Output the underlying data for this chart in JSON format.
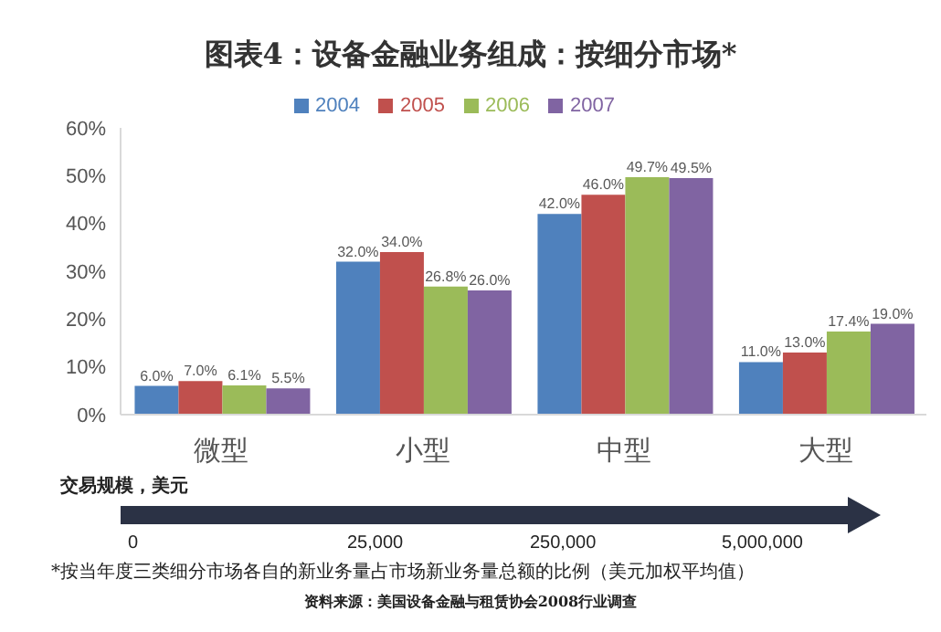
{
  "chart_data": {
    "type": "bar",
    "title": "图表4：设备金融业务组成：按细分市场*",
    "categories": [
      "微型",
      "小型",
      "中型",
      "大型"
    ],
    "series": [
      {
        "name": "2004",
        "color": "#4f81bd",
        "values": [
          6.0,
          32.0,
          42.0,
          11.0
        ],
        "value_labels": [
          "6.0%",
          "32.0%",
          "42.0%",
          "11.0%"
        ]
      },
      {
        "name": "2005",
        "color": "#c0504d",
        "values": [
          7.0,
          34.0,
          46.0,
          13.0
        ],
        "value_labels": [
          "7.0%",
          "34.0%",
          "46.0%",
          "13.0%"
        ]
      },
      {
        "name": "2006",
        "color": "#9bbb59",
        "values": [
          6.1,
          26.8,
          49.7,
          17.4
        ],
        "value_labels": [
          "6.1%",
          "26.8%",
          "49.7%",
          "17.4%"
        ]
      },
      {
        "name": "2007",
        "color": "#8064a2",
        "values": [
          5.5,
          26.0,
          49.5,
          19.0
        ],
        "value_labels": [
          "5.5%",
          "26.0%",
          "49.5%",
          "19.0%"
        ]
      }
    ],
    "ylim": [
      0,
      60
    ],
    "yticks": [
      {
        "value": 0,
        "label": "0%"
      },
      {
        "value": 10,
        "label": "10%"
      },
      {
        "value": 20,
        "label": "20%"
      },
      {
        "value": 30,
        "label": "30%"
      },
      {
        "value": 40,
        "label": "40%"
      },
      {
        "value": 50,
        "label": "50%"
      },
      {
        "value": 60,
        "label": "60%"
      }
    ],
    "grid": false,
    "legend": "top",
    "annotations": [
      "交易规模，美元",
      "0",
      "25,000",
      "250,000",
      "5,000,000",
      "*按当年度三类细分市场各自的新业务量占市场新业务量总额的比例（美元加权平均值）",
      "资料来源：美国设备金融与租赁协会2008行业调查"
    ]
  }
}
